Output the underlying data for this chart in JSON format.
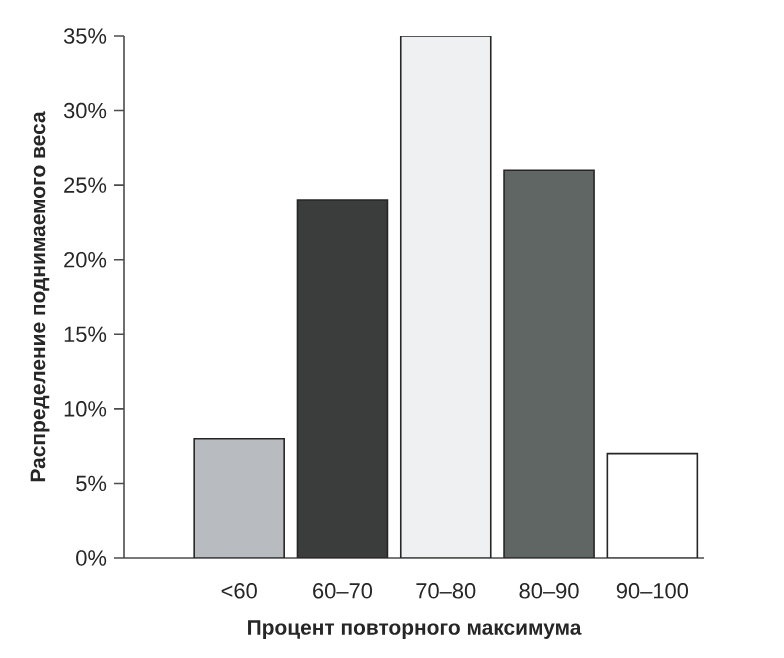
{
  "chart_data": {
    "type": "bar",
    "xlabel": "Процент повторного максимума",
    "ylabel": "Распределение поднимаемого веса",
    "categories": [
      "<60",
      "60–70",
      "70–80",
      "80–90",
      "90–100"
    ],
    "values": [
      8,
      24,
      35,
      26,
      7
    ],
    "colors": [
      "#b8bcc0",
      "#3a3d3b",
      "#eef0f2",
      "#5f6664",
      "#ffffff"
    ],
    "ylim": [
      0,
      35
    ],
    "yticks": [
      {
        "value": 0,
        "label": "0%"
      },
      {
        "value": 5,
        "label": "5%"
      },
      {
        "value": 10,
        "label": "10%"
      },
      {
        "value": 15,
        "label": "15%"
      },
      {
        "value": 20,
        "label": "20%"
      },
      {
        "value": 25,
        "label": "25%"
      },
      {
        "value": 30,
        "label": "30%"
      },
      {
        "value": 35,
        "label": "35%"
      }
    ],
    "grid": false
  }
}
